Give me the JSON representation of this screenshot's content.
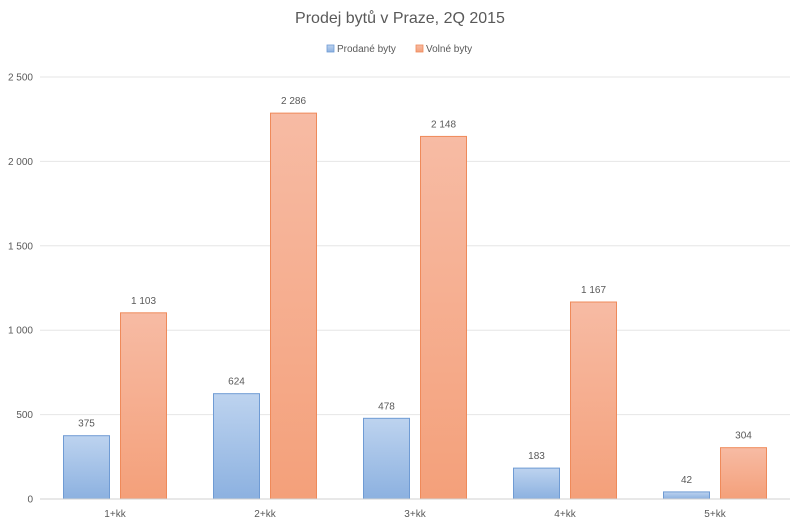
{
  "chart_data": {
    "type": "bar",
    "title": "Prodej bytů v Praze, 2Q 2015",
    "xlabel": "",
    "ylabel": "",
    "categories": [
      "1+kk",
      "2+kk",
      "3+kk",
      "4+kk",
      "5+kk"
    ],
    "series": [
      {
        "name": "Prodané byty",
        "values": [
          375,
          624,
          478,
          183,
          42
        ],
        "value_labels": [
          "375",
          "624",
          "478",
          "183",
          "42"
        ],
        "color": "#8fb4e3"
      },
      {
        "name": "Volné byty",
        "values": [
          1103,
          2286,
          2148,
          1167,
          304
        ],
        "value_labels": [
          "1 103",
          "2 286",
          "2 148",
          "1 167",
          "304"
        ],
        "color": "#f5a47f"
      }
    ],
    "ylim": [
      0,
      2500
    ],
    "yticks": [
      0,
      500,
      1000,
      1500,
      2000,
      2500
    ],
    "ytick_labels": [
      "0",
      "500",
      "1 000",
      "1 500",
      "2 000",
      "2 500"
    ],
    "grid": true,
    "legend_position": "top-center"
  }
}
